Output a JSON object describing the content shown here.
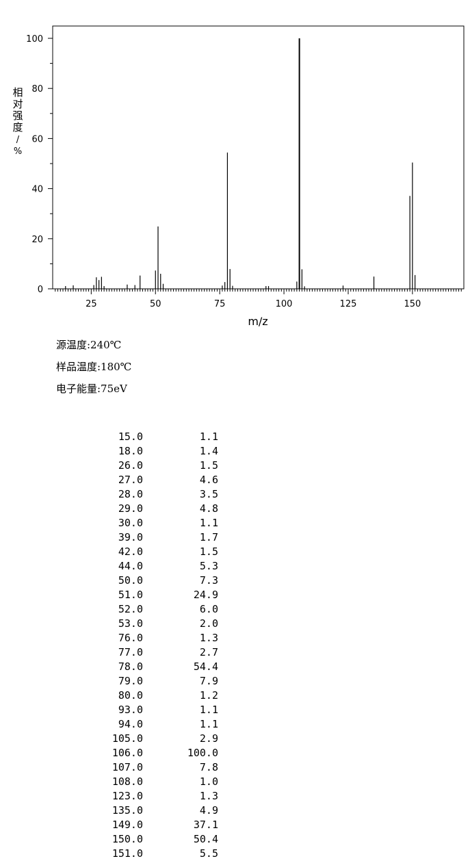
{
  "chart_data": {
    "type": "bar",
    "xlabel": "m/z",
    "ylabel": "相对强度/%",
    "xlim": [
      10,
      170
    ],
    "ylim": [
      0,
      105
    ],
    "xticks": [
      25,
      50,
      75,
      100,
      125,
      150
    ],
    "yticks": [
      0,
      20,
      40,
      60,
      80,
      100
    ],
    "grid": false,
    "peaks": [
      {
        "mz": 15.0,
        "intensity": 1.1
      },
      {
        "mz": 18.0,
        "intensity": 1.4
      },
      {
        "mz": 26.0,
        "intensity": 1.5
      },
      {
        "mz": 27.0,
        "intensity": 4.6
      },
      {
        "mz": 28.0,
        "intensity": 3.5
      },
      {
        "mz": 29.0,
        "intensity": 4.8
      },
      {
        "mz": 30.0,
        "intensity": 1.1
      },
      {
        "mz": 39.0,
        "intensity": 1.7
      },
      {
        "mz": 42.0,
        "intensity": 1.5
      },
      {
        "mz": 44.0,
        "intensity": 5.3
      },
      {
        "mz": 50.0,
        "intensity": 7.3
      },
      {
        "mz": 51.0,
        "intensity": 24.9
      },
      {
        "mz": 52.0,
        "intensity": 6.0
      },
      {
        "mz": 53.0,
        "intensity": 2.0
      },
      {
        "mz": 76.0,
        "intensity": 1.3
      },
      {
        "mz": 77.0,
        "intensity": 2.7
      },
      {
        "mz": 78.0,
        "intensity": 54.4
      },
      {
        "mz": 79.0,
        "intensity": 7.9
      },
      {
        "mz": 80.0,
        "intensity": 1.2
      },
      {
        "mz": 93.0,
        "intensity": 1.1
      },
      {
        "mz": 94.0,
        "intensity": 1.1
      },
      {
        "mz": 105.0,
        "intensity": 2.9
      },
      {
        "mz": 106.0,
        "intensity": 100.0
      },
      {
        "mz": 107.0,
        "intensity": 7.8
      },
      {
        "mz": 108.0,
        "intensity": 1.0
      },
      {
        "mz": 123.0,
        "intensity": 1.3
      },
      {
        "mz": 135.0,
        "intensity": 4.9
      },
      {
        "mz": 149.0,
        "intensity": 37.1
      },
      {
        "mz": 150.0,
        "intensity": 50.4
      },
      {
        "mz": 151.0,
        "intensity": 5.5
      }
    ]
  },
  "conditions": {
    "source_temp": "源温度:240℃",
    "sample_temp": "样品温度:180℃",
    "electron_energy": "电子能量:75eV"
  },
  "table": {
    "rows": [
      [
        "15.0",
        "1.1"
      ],
      [
        "18.0",
        "1.4"
      ],
      [
        "26.0",
        "1.5"
      ],
      [
        "27.0",
        "4.6"
      ],
      [
        "28.0",
        "3.5"
      ],
      [
        "29.0",
        "4.8"
      ],
      [
        "30.0",
        "1.1"
      ],
      [
        "39.0",
        "1.7"
      ],
      [
        "42.0",
        "1.5"
      ],
      [
        "44.0",
        "5.3"
      ],
      [
        "50.0",
        "7.3"
      ],
      [
        "51.0",
        "24.9"
      ],
      [
        "52.0",
        "6.0"
      ],
      [
        "53.0",
        "2.0"
      ],
      [
        "76.0",
        "1.3"
      ],
      [
        "77.0",
        "2.7"
      ],
      [
        "78.0",
        "54.4"
      ],
      [
        "79.0",
        "7.9"
      ],
      [
        "80.0",
        "1.2"
      ],
      [
        "93.0",
        "1.1"
      ],
      [
        "94.0",
        "1.1"
      ],
      [
        "105.0",
        "2.9"
      ],
      [
        "106.0",
        "100.0"
      ],
      [
        "107.0",
        "7.8"
      ],
      [
        "108.0",
        "1.0"
      ],
      [
        "123.0",
        "1.3"
      ],
      [
        "135.0",
        "4.9"
      ],
      [
        "149.0",
        "37.1"
      ],
      [
        "150.0",
        "50.4"
      ],
      [
        "151.0",
        "5.5"
      ]
    ]
  }
}
